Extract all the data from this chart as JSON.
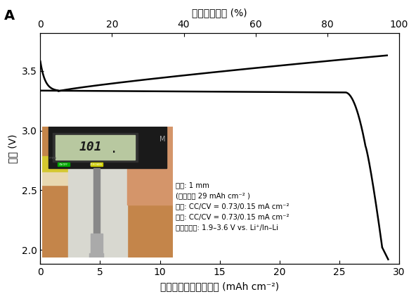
{
  "title_top": "活物質利用率 (%)",
  "xlabel": "電極面積あたりの容量 (mAh cm⁻²)",
  "ylabel": "電圧 (V)",
  "panel_label": "A",
  "xlim": [
    0,
    30
  ],
  "ylim": [
    1.88,
    3.82
  ],
  "xticks": [
    0,
    5,
    10,
    15,
    20,
    25,
    30
  ],
  "yticks": [
    2.0,
    2.5,
    3.0,
    3.5
  ],
  "top_xticks": [
    0,
    20,
    40,
    60,
    80,
    100
  ],
  "charge_color": "#000000",
  "discharge_color": "#000000",
  "background_color": "#ffffff",
  "ann_line1": "厚み: 1 mm",
  "ann_line2": "(理論容量 29 mAh cm⁻² )",
  "ann_line3": "充電: CC/CV = 0.73/0.15 mA cm⁻²",
  "ann_line4": "放電: CC/CV = 0.73/0.15 mA cm⁻²",
  "ann_line5": "カットオフ: 1.9–3.6 V vs. Li⁺/In–Li"
}
